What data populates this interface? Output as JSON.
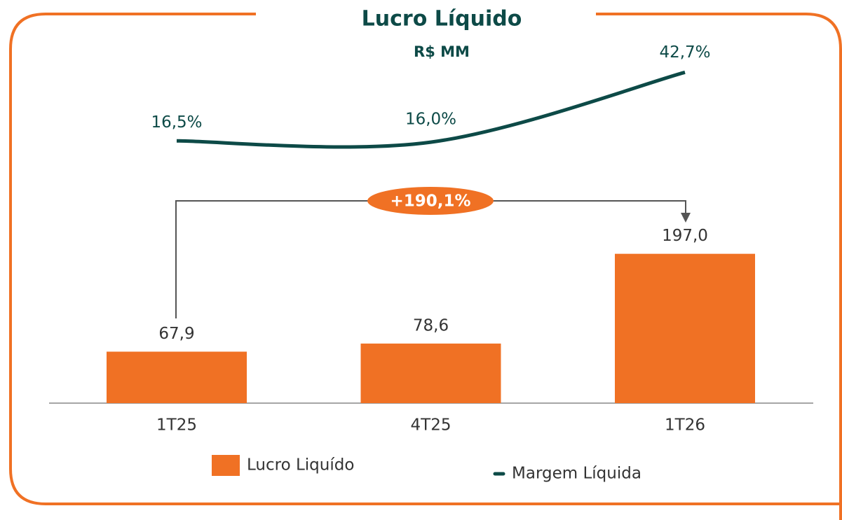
{
  "chart_data": {
    "type": "bar",
    "title": "Lucro Líquido",
    "subtitle": "R$ MM",
    "categories": [
      "1T25",
      "4T25",
      "1T26"
    ],
    "series": [
      {
        "name": "Lucro Liquído",
        "type": "bar",
        "color": "#f07124",
        "values": [
          67.9,
          78.6,
          197.0
        ],
        "value_labels": [
          "67,9",
          "78,6",
          "197,0"
        ]
      },
      {
        "name": "Margem Líquida",
        "type": "line",
        "color": "#0d4a47",
        "values": [
          16.5,
          16.0,
          42.7
        ],
        "value_labels": [
          "16,5%",
          "16,0%",
          "42,7%"
        ]
      }
    ],
    "annotation": "+190,1%"
  }
}
